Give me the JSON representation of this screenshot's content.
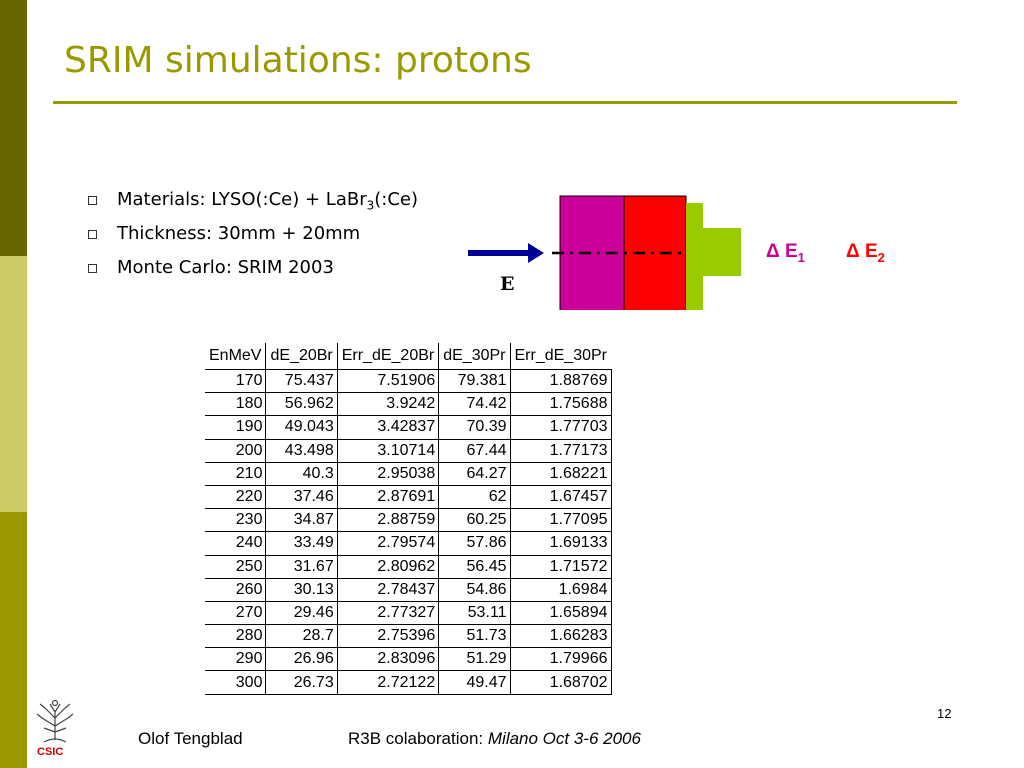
{
  "slide": {
    "title": "SRIM simulations: protons",
    "bullets": [
      {
        "pre": "Materials: LYSO(:Ce) + LaBr",
        "sub": "3",
        "post": "(:Ce)"
      },
      {
        "pre": "Thickness: 30mm + 20mm",
        "sub": "",
        "post": ""
      },
      {
        "pre": "Monte Carlo: SRIM 2003",
        "sub": "",
        "post": ""
      }
    ],
    "page_number": "12"
  },
  "diagram": {
    "beam_label": "E",
    "delta_symbol": "Δ",
    "e1_label": "E",
    "e1_sub": "1",
    "e2_label": "E",
    "e2_sub": "2",
    "colors": {
      "lyso": "#cc0099",
      "labr": "#ff0000",
      "detector": "#99cc00",
      "detector_light": "#99cc00",
      "arrow": "#000099",
      "delta_text": "#cc0099",
      "delta_text2": "#ff0000"
    }
  },
  "table": {
    "headers": [
      "EnMeV",
      "dE_20Br",
      "Err_dE_20Br",
      "dE_30Pr",
      "Err_dE_30Pr"
    ],
    "rows": [
      [
        "170",
        "75.437",
        "7.51906",
        "79.381",
        "1.88769"
      ],
      [
        "180",
        "56.962",
        "3.9242",
        "74.42",
        "1.75688"
      ],
      [
        "190",
        "49.043",
        "3.42837",
        "70.39",
        "1.77703"
      ],
      [
        "200",
        "43.498",
        "3.10714",
        "67.44",
        "1.77173"
      ],
      [
        "210",
        "40.3",
        "2.95038",
        "64.27",
        "1.68221"
      ],
      [
        "220",
        "37.46",
        "2.87691",
        "62",
        "1.67457"
      ],
      [
        "230",
        "34.87",
        "2.88759",
        "60.25",
        "1.77095"
      ],
      [
        "240",
        "33.49",
        "2.79574",
        "57.86",
        "1.69133"
      ],
      [
        "250",
        "31.67",
        "2.80962",
        "56.45",
        "1.71572"
      ],
      [
        "260",
        "30.13",
        "2.78437",
        "54.86",
        "1.6984"
      ],
      [
        "270",
        "29.46",
        "2.77327",
        "53.11",
        "1.65894"
      ],
      [
        "280",
        "28.7",
        "2.75396",
        "51.73",
        "1.66283"
      ],
      [
        "290",
        "26.96",
        "2.83096",
        "51.29",
        "1.79966"
      ],
      [
        "300",
        "26.73",
        "2.72122",
        "49.47",
        "1.68702"
      ]
    ]
  },
  "footer": {
    "author": "Olof Tengblad",
    "event_prefix": "R3B colaboration: ",
    "event_place": "Milano  Oct 3-6  2006"
  },
  "logo": {
    "text": "CSIC",
    "icon": "csic-tree-icon"
  },
  "theme": {
    "band_dark": "#666600",
    "band_light": "#cccc66",
    "band_mid": "#999900",
    "title_color": "#999900"
  }
}
